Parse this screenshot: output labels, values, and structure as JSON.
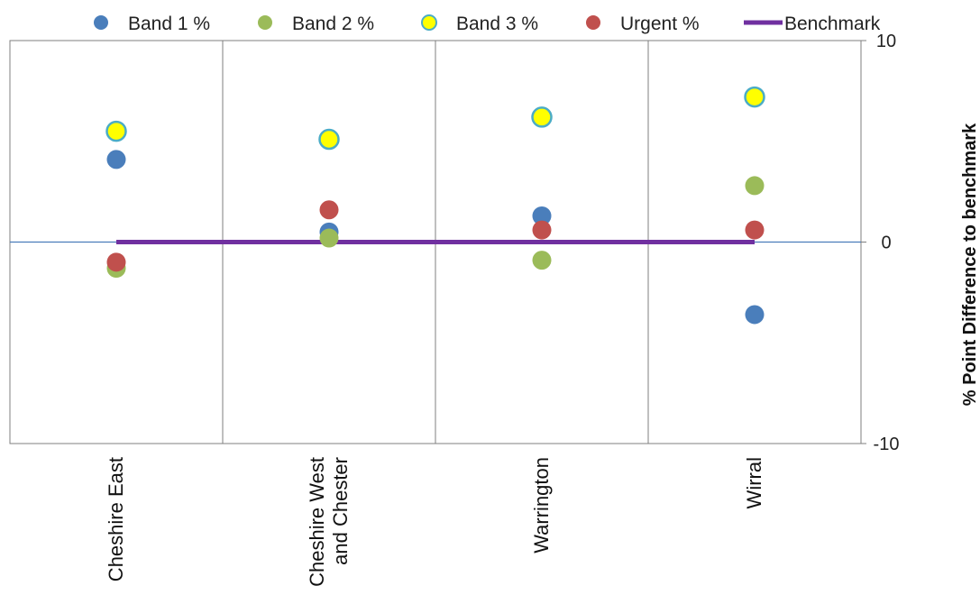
{
  "chart_data": {
    "type": "scatter",
    "categories": [
      "Cheshire East",
      "Cheshire West and Chester",
      "Warrington",
      "Wirral"
    ],
    "category_label_lines": [
      [
        "Cheshire East"
      ],
      [
        "Cheshire West",
        "and Chester"
      ],
      [
        "Warrington"
      ],
      [
        "Wirral"
      ]
    ],
    "series": [
      {
        "name": "Band 1 %",
        "color": "#4a7ebb",
        "values": [
          4.1,
          0.5,
          1.3,
          -3.6
        ]
      },
      {
        "name": "Band 2 %",
        "color": "#9bbb59",
        "values": [
          -1.3,
          0.2,
          -0.9,
          2.8
        ]
      },
      {
        "name": "Band 3 %",
        "color": "#ffff00",
        "outline": "#4bacc6",
        "values": [
          5.5,
          5.1,
          6.2,
          7.2
        ]
      },
      {
        "name": "Urgent %",
        "color": "#c0504d",
        "values": [
          -1.0,
          1.6,
          0.6,
          0.6
        ]
      }
    ],
    "benchmark": {
      "name": "Benchmark",
      "color": "#7030a0",
      "value": 0
    },
    "ylabel": "% Point  Difference to benchmark",
    "ylim": [
      -10,
      10
    ],
    "yticks": [
      -10,
      0,
      10
    ],
    "y_axis_side": "right",
    "legend_position": "top",
    "grid": "vertical category separators"
  }
}
